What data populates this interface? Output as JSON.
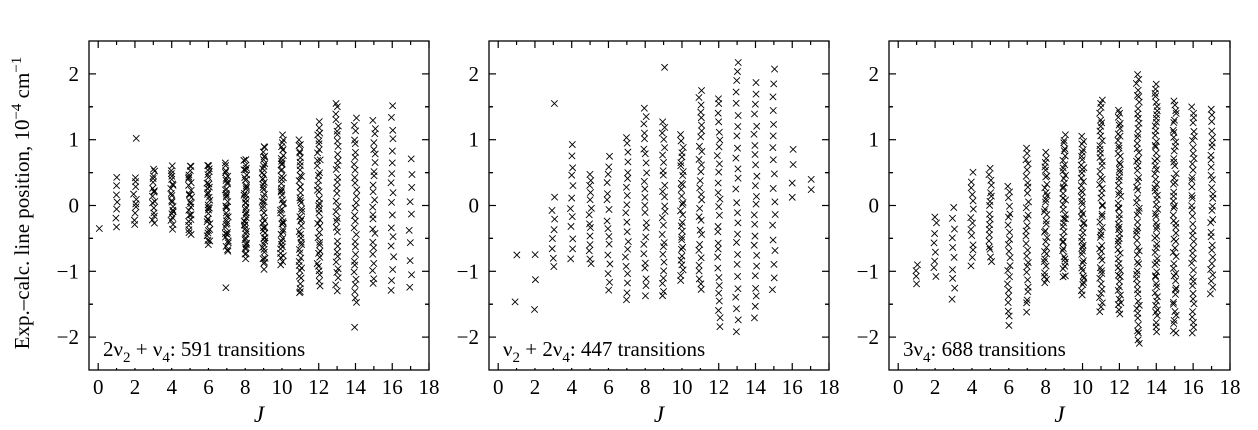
{
  "figure": {
    "ylabel_main": "Exp.–calc. line position, 10",
    "ylabel_sup": "−4",
    "ylabel_unit": " cm",
    "ylabel_unit_sup": "−1"
  },
  "chart_data": [
    {
      "type": "scatter",
      "marker": "x",
      "xlabel": "J",
      "annotation": {
        "pre": "2ν",
        "s1": "2",
        "mid": " + ν",
        "s2": "4",
        "post": ": 591 transitions"
      },
      "xlim": [
        -0.5,
        18
      ],
      "ylim": [
        -2.5,
        2.5
      ],
      "xticks": [
        "0",
        "2",
        "4",
        "6",
        "8",
        "10",
        "12",
        "14",
        "16",
        "18"
      ],
      "yticks": [
        "−2",
        "−1",
        "0",
        "1",
        "2"
      ],
      "columns": [
        {
          "J": 0,
          "lo": -0.35,
          "hi": -0.35,
          "n": 1
        },
        {
          "J": 1,
          "lo": -0.3,
          "hi": 0.4,
          "n": 7
        },
        {
          "J": 2,
          "lo": -0.3,
          "hi": 0.45,
          "n": 10,
          "extra": [
            1.02
          ]
        },
        {
          "J": 3,
          "lo": -0.25,
          "hi": 0.55,
          "n": 16
        },
        {
          "J": 4,
          "lo": -0.35,
          "hi": 0.6,
          "n": 20
        },
        {
          "J": 5,
          "lo": -0.45,
          "hi": 0.62,
          "n": 24
        },
        {
          "J": 6,
          "lo": -0.6,
          "hi": 0.62,
          "n": 30
        },
        {
          "J": 7,
          "lo": -0.7,
          "hi": 0.62,
          "n": 34,
          "extra": [
            -1.25
          ]
        },
        {
          "J": 8,
          "lo": -0.78,
          "hi": 0.7,
          "n": 40
        },
        {
          "J": 9,
          "lo": -0.95,
          "hi": 0.9,
          "n": 44
        },
        {
          "J": 10,
          "lo": -0.9,
          "hi": 1.05,
          "n": 44
        },
        {
          "J": 11,
          "lo": -1.35,
          "hi": 1.0,
          "n": 42
        },
        {
          "J": 12,
          "lo": -1.2,
          "hi": 1.25,
          "n": 38
        },
        {
          "J": 13,
          "lo": -1.3,
          "hi": 1.58,
          "n": 34
        },
        {
          "J": 14,
          "lo": -1.5,
          "hi": 1.3,
          "n": 30,
          "extra": [
            -1.85
          ]
        },
        {
          "J": 15,
          "lo": -1.2,
          "hi": 1.3,
          "n": 24
        },
        {
          "J": 16,
          "lo": -1.3,
          "hi": 1.5,
          "n": 18
        },
        {
          "J": 17,
          "lo": -1.25,
          "hi": 0.72,
          "n": 10
        }
      ]
    },
    {
      "type": "scatter",
      "marker": "x",
      "xlabel": "J",
      "annotation": {
        "pre": "ν",
        "s1": "2",
        "mid": " + 2ν",
        "s2": "4",
        "post": ": 447 transitions"
      },
      "xlim": [
        -0.5,
        18
      ],
      "ylim": [
        -2.5,
        2.5
      ],
      "xticks": [
        "0",
        "2",
        "4",
        "6",
        "8",
        "10",
        "12",
        "14",
        "16",
        "18"
      ],
      "yticks": [
        "−2",
        "−1",
        "0",
        "1",
        "2"
      ],
      "columns": [
        {
          "J": 1,
          "lo": -1.45,
          "hi": -0.75,
          "n": 2
        },
        {
          "J": 2,
          "lo": -1.55,
          "hi": -0.75,
          "n": 3
        },
        {
          "J": 3,
          "lo": -0.95,
          "hi": 0.1,
          "n": 8,
          "extra": [
            1.55
          ]
        },
        {
          "J": 4,
          "lo": -0.8,
          "hi": 0.9,
          "n": 12
        },
        {
          "J": 5,
          "lo": -0.9,
          "hi": 0.5,
          "n": 14
        },
        {
          "J": 6,
          "lo": -1.3,
          "hi": 0.75,
          "n": 16
        },
        {
          "J": 7,
          "lo": -1.45,
          "hi": 1.05,
          "n": 20
        },
        {
          "J": 8,
          "lo": -1.35,
          "hi": 1.5,
          "n": 24
        },
        {
          "J": 9,
          "lo": -1.4,
          "hi": 1.3,
          "n": 26,
          "extra": [
            2.1
          ]
        },
        {
          "J": 10,
          "lo": -1.15,
          "hi": 1.05,
          "n": 30
        },
        {
          "J": 11,
          "lo": -1.3,
          "hi": 1.75,
          "n": 30
        },
        {
          "J": 12,
          "lo": -1.85,
          "hi": 1.65,
          "n": 28
        },
        {
          "J": 13,
          "lo": -1.9,
          "hi": 2.2,
          "n": 26
        },
        {
          "J": 14,
          "lo": -1.7,
          "hi": 1.85,
          "n": 24
        },
        {
          "J": 15,
          "lo": -1.3,
          "hi": 2.05,
          "n": 18
        },
        {
          "J": 16,
          "lo": 0.1,
          "hi": 0.85,
          "n": 4
        },
        {
          "J": 17,
          "lo": 0.25,
          "hi": 0.38,
          "n": 2
        }
      ]
    },
    {
      "type": "scatter",
      "marker": "x",
      "xlabel": "J",
      "annotation": {
        "pre": "3ν",
        "s1": "4",
        "mid": "",
        "s2": "",
        "post": ": 688 transitions"
      },
      "xlim": [
        -0.5,
        18
      ],
      "ylim": [
        -2.5,
        2.5
      ],
      "xticks": [
        "0",
        "2",
        "4",
        "6",
        "8",
        "10",
        "12",
        "14",
        "16",
        "18"
      ],
      "yticks": [
        "−2",
        "−1",
        "0",
        "1",
        "2"
      ],
      "columns": [
        {
          "J": 1,
          "lo": -1.2,
          "hi": -0.9,
          "n": 4
        },
        {
          "J": 2,
          "lo": -1.1,
          "hi": -0.15,
          "n": 8
        },
        {
          "J": 3,
          "lo": -1.4,
          "hi": -0.05,
          "n": 10
        },
        {
          "J": 4,
          "lo": -0.9,
          "hi": 0.48,
          "n": 14
        },
        {
          "J": 5,
          "lo": -0.85,
          "hi": 0.55,
          "n": 18
        },
        {
          "J": 6,
          "lo": -1.8,
          "hi": 0.3,
          "n": 22
        },
        {
          "J": 7,
          "lo": -1.6,
          "hi": 0.9,
          "n": 28
        },
        {
          "J": 8,
          "lo": -1.2,
          "hi": 0.8,
          "n": 32
        },
        {
          "J": 9,
          "lo": -1.1,
          "hi": 1.05,
          "n": 38
        },
        {
          "J": 10,
          "lo": -1.35,
          "hi": 1.05,
          "n": 42
        },
        {
          "J": 11,
          "lo": -1.6,
          "hi": 1.6,
          "n": 48
        },
        {
          "J": 12,
          "lo": -1.65,
          "hi": 1.45,
          "n": 52
        },
        {
          "J": 13,
          "lo": -2.1,
          "hi": 2.0,
          "n": 56
        },
        {
          "J": 14,
          "lo": -1.9,
          "hi": 1.85,
          "n": 58
        },
        {
          "J": 15,
          "lo": -1.95,
          "hi": 1.6,
          "n": 50
        },
        {
          "J": 16,
          "lo": -1.95,
          "hi": 1.5,
          "n": 40
        },
        {
          "J": 17,
          "lo": -1.35,
          "hi": 1.45,
          "n": 30
        }
      ]
    }
  ]
}
